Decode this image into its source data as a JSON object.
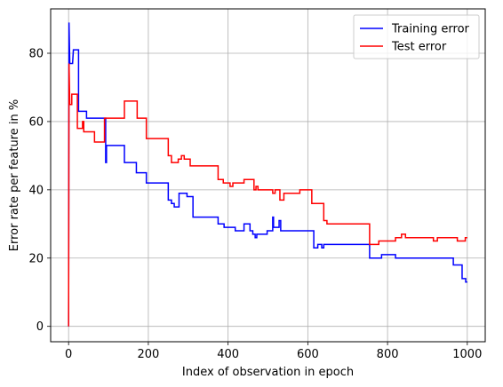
{
  "chart_data": {
    "type": "line",
    "xlabel": "Index of observation in epoch",
    "ylabel": "Error rate per feature in %",
    "xlim": [
      -45,
      1045
    ],
    "ylim": [
      -4.5,
      93
    ],
    "xticks": [
      0,
      200,
      400,
      600,
      800,
      1000
    ],
    "yticks": [
      0,
      20,
      40,
      60,
      80
    ],
    "grid": true,
    "legend_position": "top-right",
    "series": [
      {
        "name": "Training error",
        "color": "#0000ff",
        "points": [
          [
            0,
            0
          ],
          [
            1,
            89
          ],
          [
            3,
            77
          ],
          [
            10,
            77
          ],
          [
            12,
            81
          ],
          [
            25,
            81
          ],
          [
            25,
            63
          ],
          [
            45,
            63
          ],
          [
            45,
            61
          ],
          [
            93,
            61
          ],
          [
            93,
            48
          ],
          [
            95,
            48
          ],
          [
            95,
            53
          ],
          [
            140,
            53
          ],
          [
            140,
            48
          ],
          [
            170,
            48
          ],
          [
            170,
            45
          ],
          [
            195,
            45
          ],
          [
            195,
            42
          ],
          [
            250,
            42
          ],
          [
            250,
            37
          ],
          [
            258,
            37
          ],
          [
            258,
            36
          ],
          [
            265,
            36
          ],
          [
            265,
            35
          ],
          [
            277,
            35
          ],
          [
            277,
            39
          ],
          [
            297,
            39
          ],
          [
            297,
            38
          ],
          [
            312,
            38
          ],
          [
            312,
            32
          ],
          [
            375,
            32
          ],
          [
            375,
            30
          ],
          [
            390,
            30
          ],
          [
            390,
            29
          ],
          [
            418,
            29
          ],
          [
            418,
            28
          ],
          [
            440,
            28
          ],
          [
            440,
            30
          ],
          [
            455,
            30
          ],
          [
            455,
            28
          ],
          [
            462,
            28
          ],
          [
            462,
            27
          ],
          [
            468,
            27
          ],
          [
            468,
            26
          ],
          [
            472,
            26
          ],
          [
            472,
            27
          ],
          [
            498,
            27
          ],
          [
            498,
            28
          ],
          [
            512,
            28
          ],
          [
            512,
            32
          ],
          [
            514,
            32
          ],
          [
            514,
            29
          ],
          [
            528,
            29
          ],
          [
            528,
            31
          ],
          [
            532,
            31
          ],
          [
            532,
            28
          ],
          [
            615,
            28
          ],
          [
            615,
            23
          ],
          [
            625,
            23
          ],
          [
            625,
            24
          ],
          [
            635,
            24
          ],
          [
            635,
            23
          ],
          [
            640,
            23
          ],
          [
            640,
            24
          ],
          [
            755,
            24
          ],
          [
            755,
            20
          ],
          [
            785,
            20
          ],
          [
            785,
            21
          ],
          [
            820,
            21
          ],
          [
            820,
            20
          ],
          [
            965,
            20
          ],
          [
            965,
            18
          ],
          [
            987,
            18
          ],
          [
            987,
            14
          ],
          [
            996,
            14
          ],
          [
            996,
            13
          ],
          [
            1000,
            13
          ]
        ]
      },
      {
        "name": "Test error",
        "color": "#ff0000",
        "points": [
          [
            0,
            0
          ],
          [
            1,
            77
          ],
          [
            3,
            65
          ],
          [
            8,
            65
          ],
          [
            8,
            68
          ],
          [
            22,
            68
          ],
          [
            22,
            58
          ],
          [
            35,
            58
          ],
          [
            35,
            60
          ],
          [
            38,
            60
          ],
          [
            38,
            57
          ],
          [
            45,
            57
          ],
          [
            45,
            57
          ],
          [
            65,
            57
          ],
          [
            65,
            54
          ],
          [
            90,
            54
          ],
          [
            90,
            61
          ],
          [
            140,
            61
          ],
          [
            140,
            66
          ],
          [
            172,
            66
          ],
          [
            172,
            61
          ],
          [
            195,
            61
          ],
          [
            195,
            55
          ],
          [
            250,
            55
          ],
          [
            250,
            50
          ],
          [
            258,
            50
          ],
          [
            258,
            48
          ],
          [
            275,
            48
          ],
          [
            275,
            49
          ],
          [
            283,
            49
          ],
          [
            283,
            50
          ],
          [
            290,
            50
          ],
          [
            290,
            49
          ],
          [
            305,
            49
          ],
          [
            305,
            47
          ],
          [
            375,
            47
          ],
          [
            375,
            43
          ],
          [
            388,
            43
          ],
          [
            388,
            42
          ],
          [
            405,
            42
          ],
          [
            405,
            41
          ],
          [
            412,
            41
          ],
          [
            412,
            42
          ],
          [
            440,
            42
          ],
          [
            440,
            43
          ],
          [
            465,
            43
          ],
          [
            465,
            40
          ],
          [
            470,
            40
          ],
          [
            470,
            41
          ],
          [
            475,
            41
          ],
          [
            475,
            40
          ],
          [
            512,
            40
          ],
          [
            512,
            39
          ],
          [
            518,
            39
          ],
          [
            518,
            40
          ],
          [
            530,
            40
          ],
          [
            530,
            37
          ],
          [
            540,
            37
          ],
          [
            540,
            39
          ],
          [
            580,
            39
          ],
          [
            580,
            40
          ],
          [
            610,
            40
          ],
          [
            610,
            36
          ],
          [
            640,
            36
          ],
          [
            640,
            31
          ],
          [
            648,
            31
          ],
          [
            648,
            30
          ],
          [
            755,
            30
          ],
          [
            755,
            24
          ],
          [
            778,
            24
          ],
          [
            778,
            25
          ],
          [
            820,
            25
          ],
          [
            820,
            26
          ],
          [
            835,
            26
          ],
          [
            835,
            27
          ],
          [
            845,
            27
          ],
          [
            845,
            26
          ],
          [
            915,
            26
          ],
          [
            915,
            25
          ],
          [
            925,
            25
          ],
          [
            925,
            26
          ],
          [
            975,
            26
          ],
          [
            975,
            25
          ],
          [
            995,
            25
          ],
          [
            995,
            26
          ],
          [
            1000,
            26
          ]
        ]
      }
    ]
  }
}
